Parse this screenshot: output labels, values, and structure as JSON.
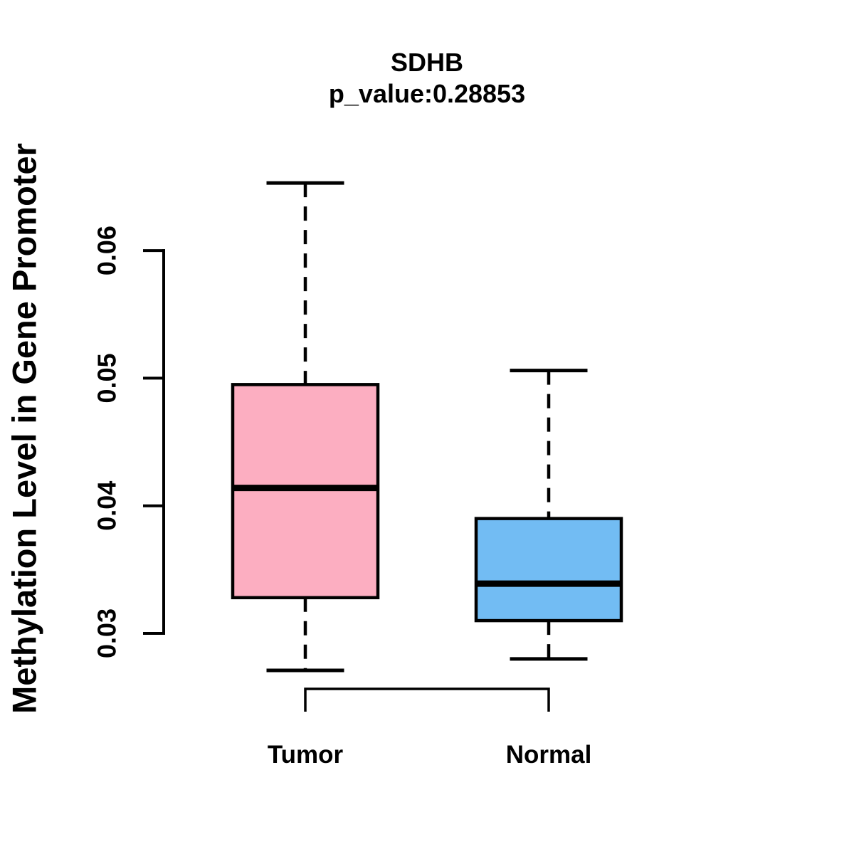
{
  "chart_data": {
    "type": "boxplot",
    "title": "SDHB",
    "subtitle": "p_value:0.28853",
    "ylabel": "Methylation Level in Gene Promoter",
    "xlabel": "",
    "grid": false,
    "legend": "none",
    "background_color": "#ffffff",
    "stroke_color": "#000000",
    "ylim": [
      0.0265,
      0.066
    ],
    "yticks": [
      0.03,
      0.04,
      0.05,
      0.06
    ],
    "ytick_labels": [
      "0.03",
      "0.04",
      "0.05",
      "0.06"
    ],
    "categories": [
      "Tumor",
      "Normal"
    ],
    "series": [
      {
        "name": "Tumor",
        "fill_color": "#FCAEC1",
        "stats": {
          "whisker_low": 0.0271,
          "q1": 0.0328,
          "median": 0.0414,
          "q3": 0.0495,
          "whisker_high": 0.0653
        },
        "outliers": []
      },
      {
        "name": "Normal",
        "fill_color": "#72BCF3",
        "stats": {
          "whisker_low": 0.028,
          "q1": 0.031,
          "median": 0.0339,
          "q3": 0.039,
          "whisker_high": 0.0506
        },
        "outliers": []
      }
    ],
    "comparison_bracket": {
      "between": [
        "Tumor",
        "Normal"
      ]
    }
  }
}
